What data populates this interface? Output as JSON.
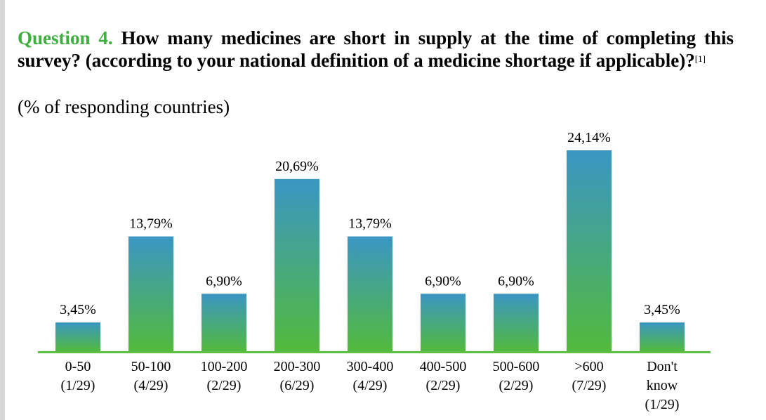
{
  "heading": {
    "question_label": "Question 4.",
    "question_text": "How many medicines are short in supply at the time of completing this survey? (according to your national definition of a medicine shortage if applicable)?",
    "footnote": "[1]",
    "subtitle": "(% of responding countries)"
  },
  "colors": {
    "question_label": "#3fae3f",
    "bar_top": "#3b96c4",
    "bar_bottom": "#52ba3c",
    "baseline": "#5fbe45"
  },
  "chart_data": {
    "type": "bar",
    "title": "How many medicines are short in supply at the time of completing this survey?",
    "ylabel": "% of responding countries",
    "xlabel": "",
    "ylim": [
      0,
      30
    ],
    "categories": [
      [
        "0-50",
        "(1/29)"
      ],
      [
        "50-100",
        "(4/29)"
      ],
      [
        "100-200",
        "(2/29)"
      ],
      [
        "200-300",
        "(6/29)"
      ],
      [
        "300-400",
        "(4/29)"
      ],
      [
        "400-500",
        "(2/29)"
      ],
      [
        "500-600",
        "(2/29)"
      ],
      [
        ">600",
        "(7/29)"
      ],
      [
        "Don't",
        "know",
        "(1/29)"
      ]
    ],
    "values": [
      3.45,
      13.79,
      6.9,
      20.69,
      13.79,
      6.9,
      6.9,
      24.14,
      3.45
    ],
    "value_labels": [
      "3,45%",
      "13,79%",
      "6,90%",
      "20,69%",
      "13,79%",
      "6,90%",
      "6,90%",
      "24,14%",
      "3,45%"
    ]
  }
}
